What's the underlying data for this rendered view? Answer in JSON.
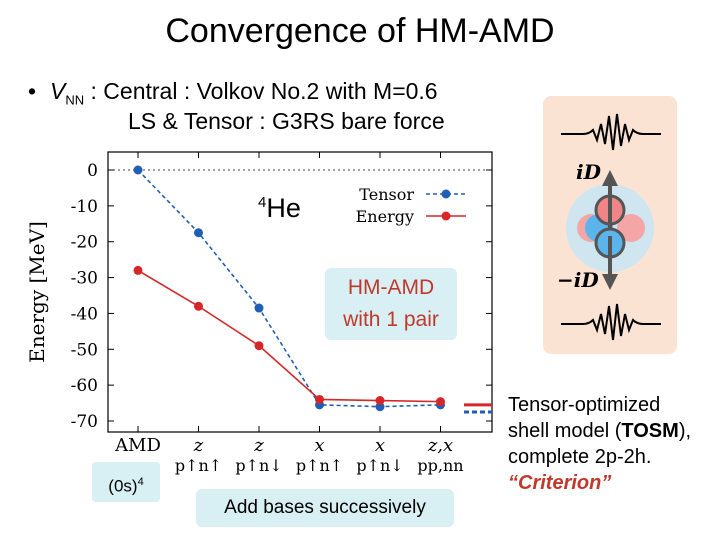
{
  "title": "Convergence of HM-AMD",
  "bullet": {
    "symbol": "•",
    "v": "V",
    "nn": "NN",
    "line1_rest": " :  Central :  Volkov No.2 with M=0.6",
    "line2": "LS & Tensor :  G3RS bare force"
  },
  "nucleus": {
    "mass": "4",
    "name": "He"
  },
  "hm_box": {
    "line1": "HM-AMD",
    "line2": "with 1 pair"
  },
  "bases_box": "Add bases successively",
  "os_box": {
    "text": "(0s)",
    "power": "4"
  },
  "tosm_note": {
    "line1": "Tensor-optimized",
    "line2a": "shell model (",
    "line2b": "TOSM",
    "line2c": "),",
    "line3": "complete 2p-2h.",
    "line4": "“Criterion”"
  },
  "diagram": {
    "top_label": "iD",
    "bottom_label": "−iD"
  },
  "colors": {
    "tensor": "#1f5fb4",
    "energy": "#d62728",
    "box": "#d8eff4",
    "diagram_bg": "#fbe3d3"
  },
  "chart_data": {
    "type": "line",
    "ylabel": "Energy [MeV]",
    "ylim": [
      -70,
      0
    ],
    "yticks": [
      "0",
      "-10",
      "-20",
      "-30",
      "-40",
      "-50",
      "-60",
      "-70"
    ],
    "categories": [
      {
        "top": "AMD",
        "bottom": ""
      },
      {
        "top": "z",
        "bottom": "p↑n↑"
      },
      {
        "top": "z",
        "bottom": "p↑n↓"
      },
      {
        "top": "x",
        "bottom": "p↑n↑"
      },
      {
        "top": "x",
        "bottom": "p↑n↓"
      },
      {
        "top": "z,x",
        "bottom": "pp,nn"
      }
    ],
    "legend": [
      "Tensor",
      "Energy"
    ],
    "series": [
      {
        "name": "Tensor",
        "values": [
          0,
          -17.5,
          -38.5,
          -65.5,
          -66,
          -65.5
        ],
        "style": "dashed"
      },
      {
        "name": "Energy",
        "values": [
          -28,
          -38,
          -49,
          -64,
          -64.3,
          -64.6
        ],
        "style": "solid"
      }
    ],
    "reference": {
      "tensor": -67.5,
      "energy": -65.5
    }
  }
}
